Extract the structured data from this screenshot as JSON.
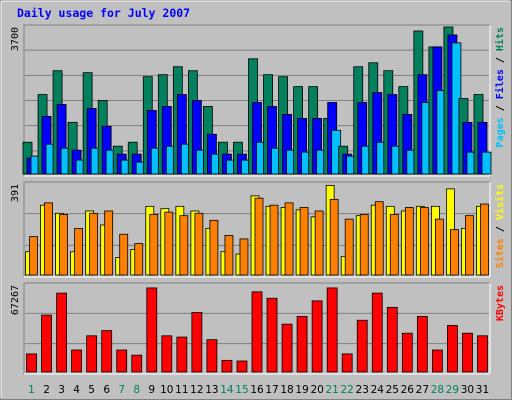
{
  "title": "Daily usage for July 2007",
  "colors": {
    "page_bg": "#c0c0c0",
    "plot_bg": "#c0c0c0",
    "grid": "#808080",
    "title": "#0000ff",
    "hits": "#00805c",
    "files": "#0000ff",
    "pages": "#00c0ff",
    "visits": "#ffff00",
    "sites": "#ff8000",
    "kbytes": "#ff0000",
    "weekday": "#000000",
    "weekend": "#00805c"
  },
  "chart_data": {
    "type": "bar",
    "title": "Daily usage for July 2007",
    "categories": [
      "1",
      "2",
      "3",
      "4",
      "5",
      "6",
      "7",
      "8",
      "9",
      "10",
      "11",
      "12",
      "13",
      "14",
      "15",
      "16",
      "17",
      "18",
      "19",
      "20",
      "21",
      "22",
      "23",
      "24",
      "25",
      "26",
      "27",
      "28",
      "29",
      "30",
      "31"
    ],
    "weekend_days": [
      "1",
      "7",
      "8",
      "14",
      "15",
      "21",
      "22",
      "28",
      "29"
    ],
    "panels": [
      {
        "id": "hits",
        "ylabel_parts": [
          "Pages",
          "Files",
          "Hits"
        ],
        "ymax_label": "3700",
        "ylim": [
          0,
          3700
        ],
        "series": [
          {
            "name": "Hits",
            "values": [
              800,
              2000,
              2600,
              1300,
              2550,
              1850,
              700,
              800,
              2450,
              2500,
              2700,
              2600,
              1700,
              800,
              800,
              2900,
              2500,
              2450,
              2200,
              2200,
              1400,
              700,
              2700,
              2800,
              2600,
              2200,
              3600,
              3200,
              3700,
              1900,
              2000
            ]
          },
          {
            "name": "Files",
            "values": [
              400,
              1450,
              1750,
              600,
              1650,
              1200,
              500,
              500,
              1600,
              1700,
              2000,
              1850,
              1000,
              500,
              500,
              1800,
              1700,
              1500,
              1400,
              1400,
              1800,
              500,
              1800,
              2050,
              2000,
              1500,
              2500,
              3200,
              3500,
              1300,
              1300
            ]
          },
          {
            "name": "Pages",
            "values": [
              450,
              750,
              650,
              350,
              650,
              600,
              350,
              300,
              650,
              700,
              750,
              600,
              500,
              350,
              350,
              800,
              650,
              600,
              550,
              600,
              1100,
              450,
              700,
              800,
              700,
              600,
              1800,
              2100,
              3300,
              550,
              550
            ]
          }
        ]
      },
      {
        "id": "visits",
        "ylabel_parts": [
          "Sites",
          "Visits"
        ],
        "ymax_label": "391",
        "ylim": [
          0,
          391
        ],
        "series": [
          {
            "name": "Visits",
            "values": [
              100,
              300,
              265,
              100,
              275,
              215,
              75,
              110,
              295,
              285,
              295,
              275,
              200,
              100,
              90,
              340,
              295,
              290,
              280,
              250,
              385,
              80,
              255,
              300,
              295,
              275,
              295,
              295,
              370,
              200,
              295
            ]
          },
          {
            "name": "Sites",
            "values": [
              165,
              310,
              260,
              200,
              265,
              275,
              175,
              135,
              260,
              270,
              255,
              265,
              235,
              170,
              155,
              330,
              300,
              310,
              290,
              275,
              325,
              240,
              260,
              315,
              260,
              290,
              290,
              240,
              195,
              255,
              305
            ]
          }
        ]
      },
      {
        "id": "kbytes",
        "ylabel_parts": [
          "KBytes"
        ],
        "ymax_label": "67267",
        "ylim": [
          0,
          67267
        ],
        "series": [
          {
            "name": "KBytes",
            "values": [
              14000,
              44000,
              61000,
              17000,
              28000,
              32000,
              17000,
              13000,
              65000,
              28000,
              27000,
              46000,
              25000,
              9000,
              8500,
              62000,
              57000,
              37000,
              43000,
              55000,
              65000,
              14000,
              40000,
              61000,
              50000,
              30000,
              43000,
              17000,
              36000,
              30000,
              28000
            ]
          }
        ]
      }
    ]
  }
}
